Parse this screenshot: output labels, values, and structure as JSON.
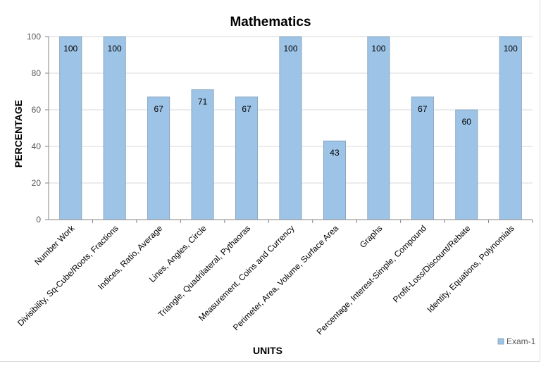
{
  "chart_data": {
    "type": "bar",
    "title": "Mathematics",
    "xlabel": "UNITS",
    "ylabel": "PERCENTAGE",
    "ylim": [
      0,
      100
    ],
    "yticks": [
      0,
      20,
      40,
      60,
      80,
      100
    ],
    "grid": true,
    "legend_position": "bottom-right",
    "bar_color": "#9dc3e6",
    "bar_edge_color": "#7f9db9",
    "categories": [
      "Number Work",
      "Divisibility, Sq-Cube/Roots, Fractions",
      "Indices, Ratio, Average",
      "Lines, Angles, Circle",
      "Triangle, Quadrilateral, Pythaoras",
      "Measurement,  Coins and Currency",
      "Perimeter, Area, Volume, Surface Area",
      "Graphs",
      "Percentage, Interest-Simple, Compound",
      "Profit-Loss/Discount/Rebate",
      "Identity, Equations, Polynomials"
    ],
    "series": [
      {
        "name": "Exam-1",
        "values": [
          100,
          100,
          67,
          71,
          67,
          100,
          43,
          100,
          67,
          60,
          100
        ]
      }
    ]
  }
}
